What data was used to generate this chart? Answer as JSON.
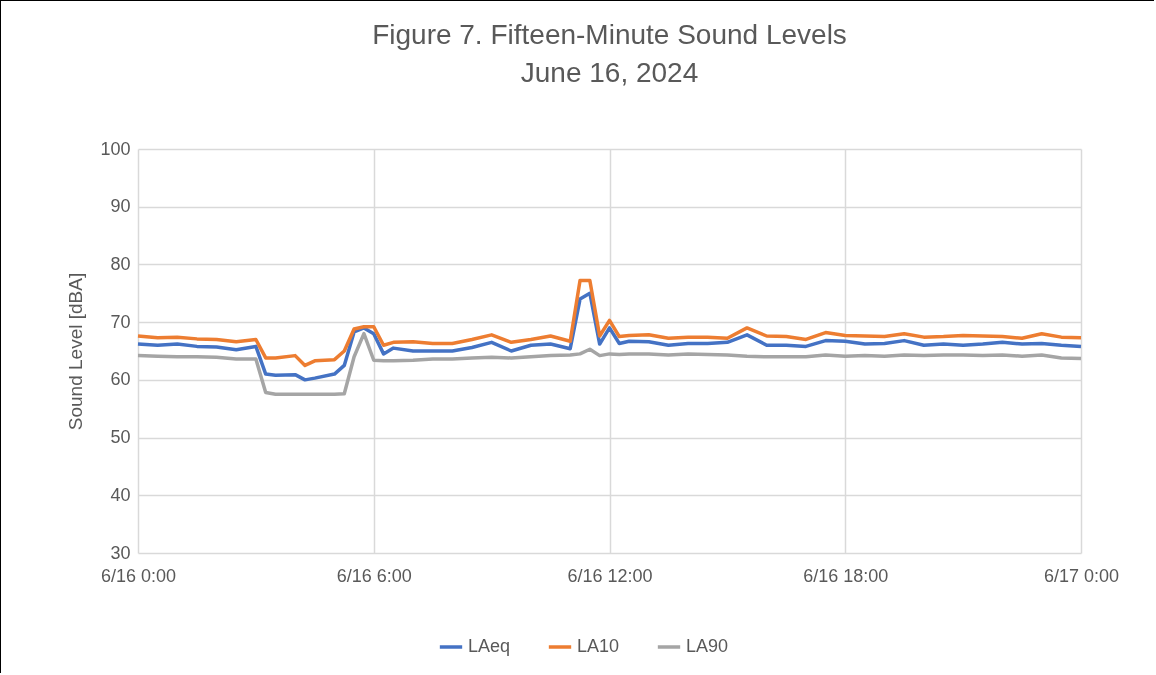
{
  "chart_data": {
    "type": "line",
    "title": "Figure 7.  Fifteen-Minute Sound Levels",
    "subtitle": "June 16, 2024",
    "ylabel": "Sound Level [dBA]",
    "x": [
      "2024-06-16T00:00",
      "2024-06-16T00:30",
      "2024-06-16T01:00",
      "2024-06-16T01:30",
      "2024-06-16T02:00",
      "2024-06-16T02:30",
      "2024-06-16T03:00",
      "2024-06-16T03:15",
      "2024-06-16T03:30",
      "2024-06-16T04:00",
      "2024-06-16T04:15",
      "2024-06-16T04:30",
      "2024-06-16T05:00",
      "2024-06-16T05:15",
      "2024-06-16T05:30",
      "2024-06-16T05:45",
      "2024-06-16T06:00",
      "2024-06-16T06:15",
      "2024-06-16T06:30",
      "2024-06-16T07:00",
      "2024-06-16T07:30",
      "2024-06-16T08:00",
      "2024-06-16T08:30",
      "2024-06-16T09:00",
      "2024-06-16T09:30",
      "2024-06-16T10:00",
      "2024-06-16T10:30",
      "2024-06-16T11:00",
      "2024-06-16T11:15",
      "2024-06-16T11:30",
      "2024-06-16T11:45",
      "2024-06-16T12:00",
      "2024-06-16T12:15",
      "2024-06-16T12:30",
      "2024-06-16T13:00",
      "2024-06-16T13:30",
      "2024-06-16T14:00",
      "2024-06-16T14:30",
      "2024-06-16T15:00",
      "2024-06-16T15:30",
      "2024-06-16T16:00",
      "2024-06-16T16:30",
      "2024-06-16T17:00",
      "2024-06-16T17:30",
      "2024-06-16T18:00",
      "2024-06-16T18:30",
      "2024-06-16T19:00",
      "2024-06-16T19:30",
      "2024-06-16T20:00",
      "2024-06-16T20:30",
      "2024-06-16T21:00",
      "2024-06-16T21:30",
      "2024-06-16T22:00",
      "2024-06-16T22:30",
      "2024-06-16T23:00",
      "2024-06-16T23:30",
      "2024-06-17T00:00"
    ],
    "series": [
      {
        "name": "LAeq",
        "color": "#4472c4",
        "values": [
          66.2,
          66,
          66.2,
          65.8,
          65.7,
          65.2,
          65.8,
          61,
          60.8,
          60.9,
          60,
          60.3,
          61,
          62.5,
          68.3,
          69,
          68,
          64.5,
          65.5,
          65,
          65,
          65,
          65.6,
          66.5,
          65,
          66,
          66.2,
          65.4,
          74,
          75,
          66.2,
          69,
          66.3,
          66.7,
          66.6,
          66,
          66.3,
          66.3,
          66.5,
          67.8,
          66,
          66,
          65.8,
          66.8,
          66.7,
          66.2,
          66.3,
          66.8,
          66,
          66.2,
          66,
          66.2,
          66.5,
          66.2,
          66.3,
          66,
          65.8
        ]
      },
      {
        "name": "LA10",
        "color": "#ed7d31",
        "values": [
          67.6,
          67.3,
          67.4,
          67.1,
          67,
          66.6,
          67,
          63.8,
          63.8,
          64.2,
          62.5,
          63.3,
          63.5,
          65,
          68.8,
          69.2,
          69.2,
          66,
          66.5,
          66.6,
          66.3,
          66.3,
          67,
          67.8,
          66.5,
          67,
          67.6,
          66.7,
          77.2,
          77.2,
          67.6,
          70.3,
          67.5,
          67.7,
          67.8,
          67.2,
          67.4,
          67.4,
          67.2,
          69,
          67.6,
          67.5,
          67,
          68.2,
          67.7,
          67.6,
          67.5,
          68,
          67.4,
          67.5,
          67.7,
          67.6,
          67.5,
          67.2,
          68,
          67.4,
          67.3
        ]
      },
      {
        "name": "LA90",
        "color": "#a5a5a5",
        "values": [
          64.2,
          64.1,
          64,
          64,
          63.9,
          63.6,
          63.6,
          57.8,
          57.5,
          57.5,
          57.5,
          57.5,
          57.5,
          57.6,
          64,
          68,
          63.4,
          63.3,
          63.3,
          63.4,
          63.6,
          63.6,
          63.8,
          63.9,
          63.8,
          64,
          64.2,
          64.3,
          64.5,
          65.3,
          64.2,
          64.5,
          64.4,
          64.5,
          64.5,
          64.3,
          64.5,
          64.4,
          64.3,
          64.1,
          64,
          64,
          64,
          64.3,
          64.1,
          64.2,
          64.1,
          64.3,
          64.2,
          64.3,
          64.3,
          64.2,
          64.3,
          64.1,
          64.3,
          63.8,
          63.7
        ]
      }
    ],
    "xlim": [
      "2024-06-16T00:00",
      "2024-06-17T00:00"
    ],
    "xticks": [
      {
        "value": "2024-06-16T00:00",
        "label": "6/16 0:00"
      },
      {
        "value": "2024-06-16T06:00",
        "label": "6/16 6:00"
      },
      {
        "value": "2024-06-16T12:00",
        "label": "6/16 12:00"
      },
      {
        "value": "2024-06-16T18:00",
        "label": "6/16 18:00"
      },
      {
        "value": "2024-06-17T00:00",
        "label": "6/17 0:00"
      }
    ],
    "ylim": [
      30,
      100
    ],
    "yticks": [
      30,
      40,
      50,
      60,
      70,
      80,
      90,
      100
    ],
    "grid": true,
    "legend": "bottom",
    "marker": "none",
    "line_style": "solid"
  }
}
